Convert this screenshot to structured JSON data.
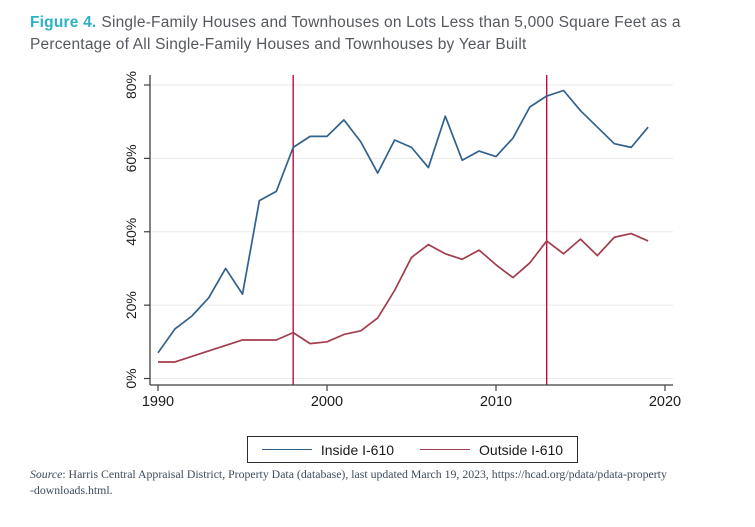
{
  "title": {
    "figure_label": "Figure 4.",
    "text": "Single-Family Houses and Townhouses on Lots Less than 5,000 Square Feet as a Percentage of All Single-Family Houses and Townhouses by Year Built"
  },
  "legend": {
    "items": [
      {
        "label": "Inside I-610",
        "color": "#31618d"
      },
      {
        "label": "Outside I-610",
        "color": "#a23d4d"
      }
    ]
  },
  "source": {
    "prefix": "Source",
    "line1": ": Harris Central Appraisal District, Property Data (database), last updated March 19, 2023, https://hcad.org/pdata/pdata-property",
    "line2": "-downloads.html."
  },
  "colors": {
    "accent_teal": "#29b2c6",
    "title_gray": "#55585e",
    "grid": "#eaeaea",
    "axis": "#3f3f3f",
    "tick_label": "#1c1c1c",
    "reference_line": "#c20d3d"
  },
  "chart_data": {
    "type": "line",
    "x": [
      1990,
      1991,
      1992,
      1993,
      1994,
      1995,
      1996,
      1997,
      1998,
      1999,
      2000,
      2001,
      2002,
      2003,
      2004,
      2005,
      2006,
      2007,
      2008,
      2009,
      2010,
      2011,
      2012,
      2013,
      2014,
      2015,
      2016,
      2017,
      2018,
      2019
    ],
    "series": [
      {
        "name": "Inside I-610",
        "color": "#31618d",
        "values": [
          7,
          13.5,
          17,
          22,
          30,
          23,
          48.5,
          51,
          63,
          66,
          66,
          70.5,
          64.5,
          56,
          65,
          63,
          57.5,
          71.5,
          59.5,
          62,
          60.5,
          65.5,
          74,
          77,
          78.5,
          73,
          68.5,
          64,
          63,
          68.5
        ]
      },
      {
        "name": "Outside I-610",
        "color": "#a23d4d",
        "values": [
          4.5,
          4.5,
          6,
          7.5,
          9,
          10.5,
          10.5,
          10.5,
          12.5,
          9.5,
          10,
          12,
          13,
          16.5,
          24,
          33,
          36.5,
          34,
          32.5,
          35,
          31,
          27.5,
          31.5,
          37.5,
          34,
          38,
          33.5,
          38.5,
          39.5,
          37.5
        ]
      }
    ],
    "xticks": [
      1990,
      2000,
      2010,
      2020
    ],
    "ytick_values": [
      0,
      20,
      40,
      60,
      80
    ],
    "ytick_labels": [
      "0%",
      "20%",
      "40%",
      "60%",
      "80%"
    ],
    "xlim": [
      1990,
      2020.5
    ],
    "ylim": [
      0,
      80
    ],
    "vlines": [
      {
        "x": 1998
      },
      {
        "x": 2013
      }
    ],
    "grid": true,
    "legend_position": "bottom-center",
    "title": "Single-Family Houses and Townhouses on Lots Less than 5,000 Square Feet as a Percentage of All Single-Family Houses and Townhouses by Year Built",
    "xlabel": "",
    "ylabel": ""
  }
}
